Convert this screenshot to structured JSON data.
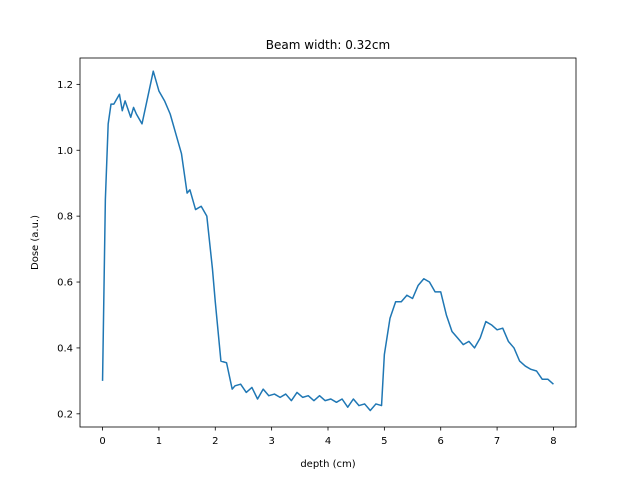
{
  "chart_data": {
    "type": "line",
    "title": "Beam width: 0.32cm",
    "xlabel": "depth (cm)",
    "ylabel": "Dose (a.u.)",
    "xlim": [
      -0.4,
      8.4
    ],
    "ylim": [
      0.16,
      1.28
    ],
    "xticks": [
      0,
      1,
      2,
      3,
      4,
      5,
      6,
      7,
      8
    ],
    "yticks": [
      0.2,
      0.4,
      0.6,
      0.8,
      1.0,
      1.2
    ],
    "xtick_labels": [
      "0",
      "1",
      "2",
      "3",
      "4",
      "5",
      "6",
      "7",
      "8"
    ],
    "ytick_labels": [
      "0.2",
      "0.4",
      "0.6",
      "0.8",
      "1.0",
      "1.2"
    ],
    "grid": false,
    "series": [
      {
        "color": "#1f77b4",
        "x": [
          0,
          0.05,
          0.1,
          0.15,
          0.2,
          0.3,
          0.35,
          0.4,
          0.5,
          0.55,
          0.6,
          0.7,
          0.8,
          0.9,
          1.0,
          1.1,
          1.2,
          1.3,
          1.4,
          1.5,
          1.55,
          1.65,
          1.75,
          1.85,
          1.95,
          2.0,
          2.1,
          2.2,
          2.3,
          2.35,
          2.45,
          2.55,
          2.65,
          2.75,
          2.85,
          2.95,
          3.05,
          3.15,
          3.25,
          3.35,
          3.45,
          3.55,
          3.65,
          3.75,
          3.85,
          3.95,
          4.05,
          4.15,
          4.25,
          4.35,
          4.45,
          4.55,
          4.65,
          4.75,
          4.85,
          4.95,
          5.0,
          5.1,
          5.2,
          5.3,
          5.4,
          5.5,
          5.6,
          5.7,
          5.8,
          5.9,
          6.0,
          6.1,
          6.2,
          6.3,
          6.4,
          6.5,
          6.6,
          6.7,
          6.8,
          6.9,
          7.0,
          7.1,
          7.2,
          7.3,
          7.4,
          7.5,
          7.6,
          7.7,
          7.8,
          7.9,
          8.0
        ],
        "y": [
          0.3,
          0.85,
          1.08,
          1.14,
          1.14,
          1.17,
          1.12,
          1.15,
          1.1,
          1.13,
          1.11,
          1.08,
          1.16,
          1.24,
          1.18,
          1.15,
          1.11,
          1.05,
          0.99,
          0.87,
          0.88,
          0.82,
          0.83,
          0.8,
          0.64,
          0.54,
          0.36,
          0.355,
          0.275,
          0.285,
          0.29,
          0.265,
          0.28,
          0.245,
          0.275,
          0.255,
          0.26,
          0.25,
          0.26,
          0.24,
          0.265,
          0.25,
          0.255,
          0.24,
          0.255,
          0.24,
          0.245,
          0.235,
          0.245,
          0.22,
          0.245,
          0.225,
          0.23,
          0.21,
          0.23,
          0.225,
          0.38,
          0.49,
          0.54,
          0.54,
          0.56,
          0.55,
          0.59,
          0.61,
          0.6,
          0.57,
          0.57,
          0.5,
          0.45,
          0.43,
          0.41,
          0.42,
          0.4,
          0.43,
          0.48,
          0.47,
          0.455,
          0.46,
          0.42,
          0.4,
          0.36,
          0.345,
          0.335,
          0.33,
          0.305,
          0.305,
          0.29
        ]
      }
    ]
  }
}
